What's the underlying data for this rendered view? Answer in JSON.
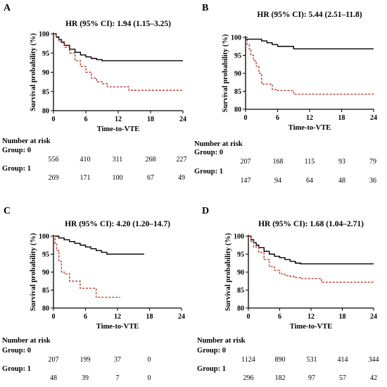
{
  "chart_data": [
    {
      "panel": "A",
      "type": "line",
      "title": "HR (95% CI): 1.94 (1.15–3.25)",
      "xlabel": "Time-to-VTE",
      "ylabel": "Survival probability (%)",
      "xlim": [
        0,
        24
      ],
      "ylim": [
        80,
        100
      ],
      "xticks": [
        0,
        6,
        12,
        18,
        24
      ],
      "yticks": [
        80,
        85,
        90,
        95,
        100
      ],
      "series": [
        {
          "color": "#000000",
          "dash": "solid",
          "x": [
            0,
            0.5,
            1,
            1.5,
            2,
            3,
            4,
            5,
            6,
            7,
            8,
            9,
            10,
            24
          ],
          "y": [
            100,
            99.2,
            98.5,
            97.8,
            97,
            96,
            95.2,
            94.5,
            94,
            93.6,
            93.3,
            93,
            93,
            93
          ]
        },
        {
          "color": "#c0392b",
          "dash": "dashed",
          "x": [
            0,
            0.5,
            1,
            2,
            3,
            4,
            5,
            6,
            7,
            8,
            9,
            10,
            12,
            14,
            24
          ],
          "y": [
            100,
            99,
            98,
            96.5,
            95,
            93,
            91.5,
            90,
            88.5,
            87.5,
            87,
            86.2,
            86.2,
            85.3,
            85.3
          ]
        }
      ],
      "risk_table": {
        "header": "Number at risk",
        "groups": [
          {
            "label": "Group: 0",
            "values": [
              "556",
              "410",
              "311",
              "268",
              "227"
            ]
          },
          {
            "label": "Group: 1",
            "values": [
              "269",
              "171",
              "100",
              "67",
              "49"
            ]
          }
        ]
      }
    },
    {
      "panel": "B",
      "type": "line",
      "title": "HR (95% CI): 5.44 (2.51–11.8)",
      "xlabel": "Time-to-VTE",
      "ylabel": "Survival probability (%)",
      "xlim": [
        0,
        24
      ],
      "ylim": [
        80,
        100
      ],
      "xticks": [
        0,
        6,
        12,
        18,
        24
      ],
      "yticks": [
        80,
        85,
        90,
        95,
        100
      ],
      "series": [
        {
          "color": "#000000",
          "dash": "solid",
          "x": [
            0,
            2,
            3,
            4,
            5,
            6,
            7,
            9,
            24
          ],
          "y": [
            99.5,
            99.5,
            99,
            98.5,
            98,
            97.5,
            97.5,
            96.8,
            96.8
          ]
        },
        {
          "color": "#c0392b",
          "dash": "dashed",
          "x": [
            0,
            0.3,
            0.7,
            1,
            1.5,
            2,
            2.5,
            3,
            4,
            5,
            6,
            7,
            8,
            9,
            24
          ],
          "y": [
            100,
            98,
            96.5,
            95,
            93.5,
            92,
            90,
            87,
            87,
            85.5,
            85.2,
            85.2,
            85.2,
            84.2,
            84.2
          ]
        }
      ],
      "risk_table": {
        "header": "Number at risk",
        "groups": [
          {
            "label": "Group: 0",
            "values": [
              "207",
              "168",
              "115",
              "93",
              "79"
            ]
          },
          {
            "label": "Group: 1",
            "values": [
              "147",
              "94",
              "64",
              "48",
              "36"
            ]
          }
        ]
      }
    },
    {
      "panel": "C",
      "type": "line",
      "title": "HR (95% CI): 4.20 (1.20–14.7)",
      "xlabel": "Time-to-VTE",
      "ylabel": "Survival probability (%)",
      "xlim": [
        0,
        24
      ],
      "ylim": [
        80,
        100
      ],
      "xticks": [
        0,
        6,
        12,
        18,
        24
      ],
      "yticks": [
        80,
        85,
        90,
        95,
        100
      ],
      "series": [
        {
          "color": "#000000",
          "dash": "solid",
          "x": [
            0,
            1,
            2,
            3,
            4,
            5,
            6,
            7,
            8,
            9,
            10,
            17
          ],
          "y": [
            100,
            99.5,
            99,
            98.5,
            98,
            97.5,
            97,
            96.5,
            96,
            95.5,
            95,
            95
          ]
        },
        {
          "color": "#c0392b",
          "dash": "dashed",
          "x": [
            0,
            0.3,
            0.6,
            1,
            1.5,
            2,
            3,
            4,
            5,
            6,
            7,
            8,
            12.5
          ],
          "y": [
            100,
            98,
            96,
            93,
            90,
            89.5,
            87.5,
            87.5,
            85.5,
            85.5,
            85.5,
            83,
            83
          ]
        }
      ],
      "risk_table": {
        "header": "Number at risk",
        "groups": [
          {
            "label": "Group: 0",
            "values": [
              "207",
              "199",
              "37",
              "0",
              ""
            ]
          },
          {
            "label": "Group: 1",
            "values": [
              "48",
              "39",
              "7",
              "0",
              ""
            ]
          }
        ]
      }
    },
    {
      "panel": "D",
      "type": "line",
      "title": "HR (95% CI): 1.68 (1.04–2.71)",
      "xlabel": "Time-to-VTE",
      "ylabel": "Survival probability (%)",
      "xlim": [
        0,
        24
      ],
      "ylim": [
        80,
        100
      ],
      "xticks": [
        0,
        6,
        12,
        18,
        24
      ],
      "yticks": [
        80,
        85,
        90,
        95,
        100
      ],
      "series": [
        {
          "color": "#000000",
          "dash": "solid",
          "x": [
            0,
            0.5,
            1,
            1.5,
            2,
            3,
            4,
            5,
            6,
            7,
            8,
            9,
            10,
            24
          ],
          "y": [
            100,
            99,
            98.2,
            97.5,
            96.8,
            95.8,
            95,
            94.4,
            94,
            93.5,
            93,
            92.5,
            92.3,
            92.3
          ]
        },
        {
          "color": "#c0392b",
          "dash": "dashed",
          "x": [
            0,
            0.5,
            1,
            2,
            3,
            4,
            5,
            6,
            7,
            8,
            9,
            10,
            12,
            14,
            24
          ],
          "y": [
            100,
            98.5,
            97,
            95.5,
            93.5,
            91.5,
            90.5,
            89.5,
            89,
            88.8,
            88.5,
            88.2,
            88.2,
            87.2,
            87.2
          ]
        }
      ],
      "risk_table": {
        "header": "Number at risk",
        "groups": [
          {
            "label": "Group: 0",
            "values": [
              "1124",
              "890",
              "531",
              "414",
              "344"
            ]
          },
          {
            "label": "Group: 1",
            "values": [
              "296",
              "182",
              "97",
              "57",
              "42"
            ]
          }
        ]
      }
    }
  ]
}
